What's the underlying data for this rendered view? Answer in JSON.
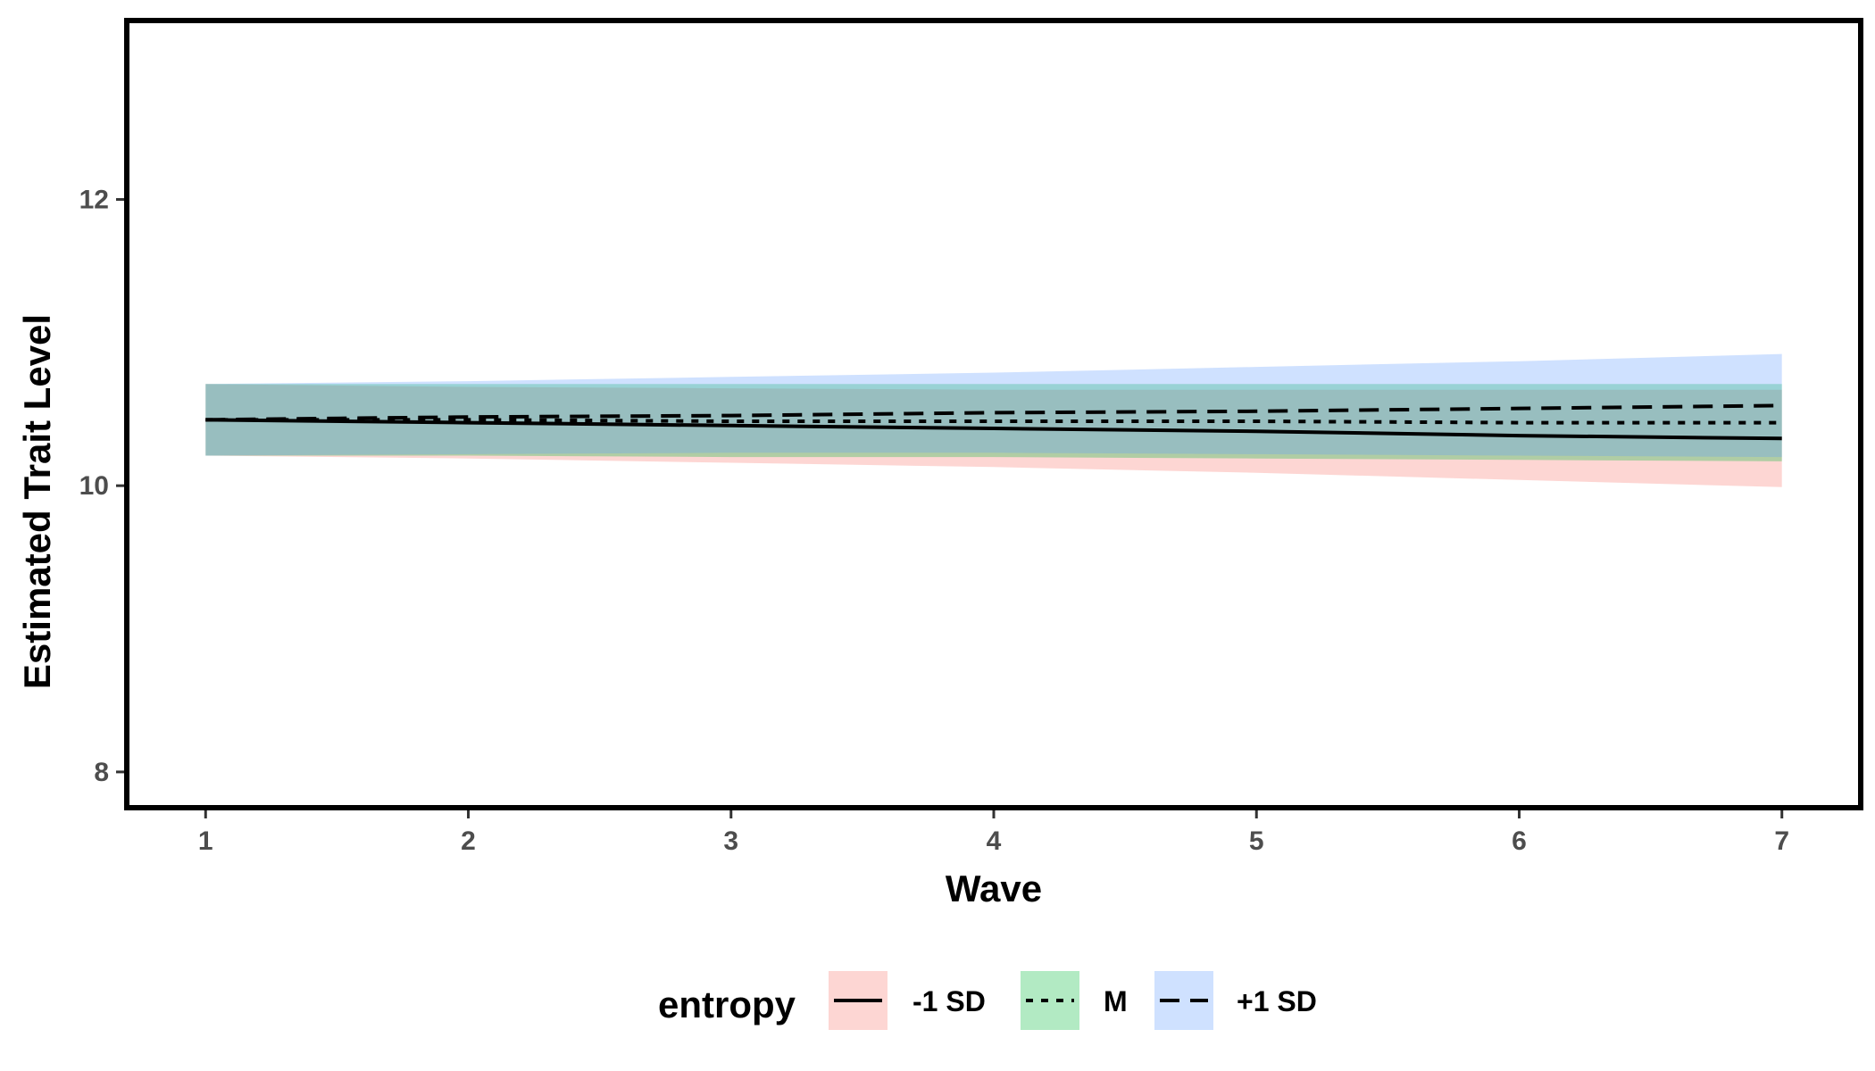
{
  "chart_data": {
    "type": "line",
    "title": "",
    "xlabel": "Wave",
    "ylabel": "Estimated Trait Level",
    "x": [
      1,
      2,
      3,
      4,
      5,
      6,
      7
    ],
    "xlim": [
      0.7,
      7.3
    ],
    "ylim": [
      7.75,
      13.25
    ],
    "x_ticks": [
      1,
      2,
      3,
      4,
      5,
      6,
      7
    ],
    "y_ticks": [
      8,
      10,
      12
    ],
    "grid": false,
    "legend": {
      "title": "entropy",
      "placement": "bottom",
      "entries": [
        "-1 SD",
        "M",
        "+1 SD"
      ]
    },
    "series": [
      {
        "name": "-1 SD",
        "linestyle": "solid",
        "ribbon_color": "#F8766D",
        "values": [
          10.46,
          10.44,
          10.42,
          10.4,
          10.38,
          10.35,
          10.33
        ],
        "lower": [
          10.21,
          10.19,
          10.16,
          10.13,
          10.09,
          10.04,
          9.99
        ],
        "upper": [
          10.71,
          10.69,
          10.68,
          10.67,
          10.67,
          10.67,
          10.67
        ]
      },
      {
        "name": "M",
        "linestyle": "dotted",
        "ribbon_color": "#00BA38",
        "values": [
          10.46,
          10.46,
          10.45,
          10.45,
          10.45,
          10.44,
          10.44
        ],
        "lower": [
          10.21,
          10.21,
          10.2,
          10.2,
          10.19,
          10.18,
          10.17
        ],
        "upper": [
          10.71,
          10.71,
          10.71,
          10.71,
          10.71,
          10.71,
          10.71
        ]
      },
      {
        "name": "+1 SD",
        "linestyle": "dashed",
        "ribbon_color": "#619CFF",
        "values": [
          10.46,
          10.48,
          10.49,
          10.51,
          10.52,
          10.54,
          10.56
        ],
        "lower": [
          10.21,
          10.22,
          10.23,
          10.23,
          10.22,
          10.21,
          10.2
        ],
        "upper": [
          10.71,
          10.73,
          10.76,
          10.79,
          10.83,
          10.87,
          10.92
        ]
      }
    ]
  }
}
